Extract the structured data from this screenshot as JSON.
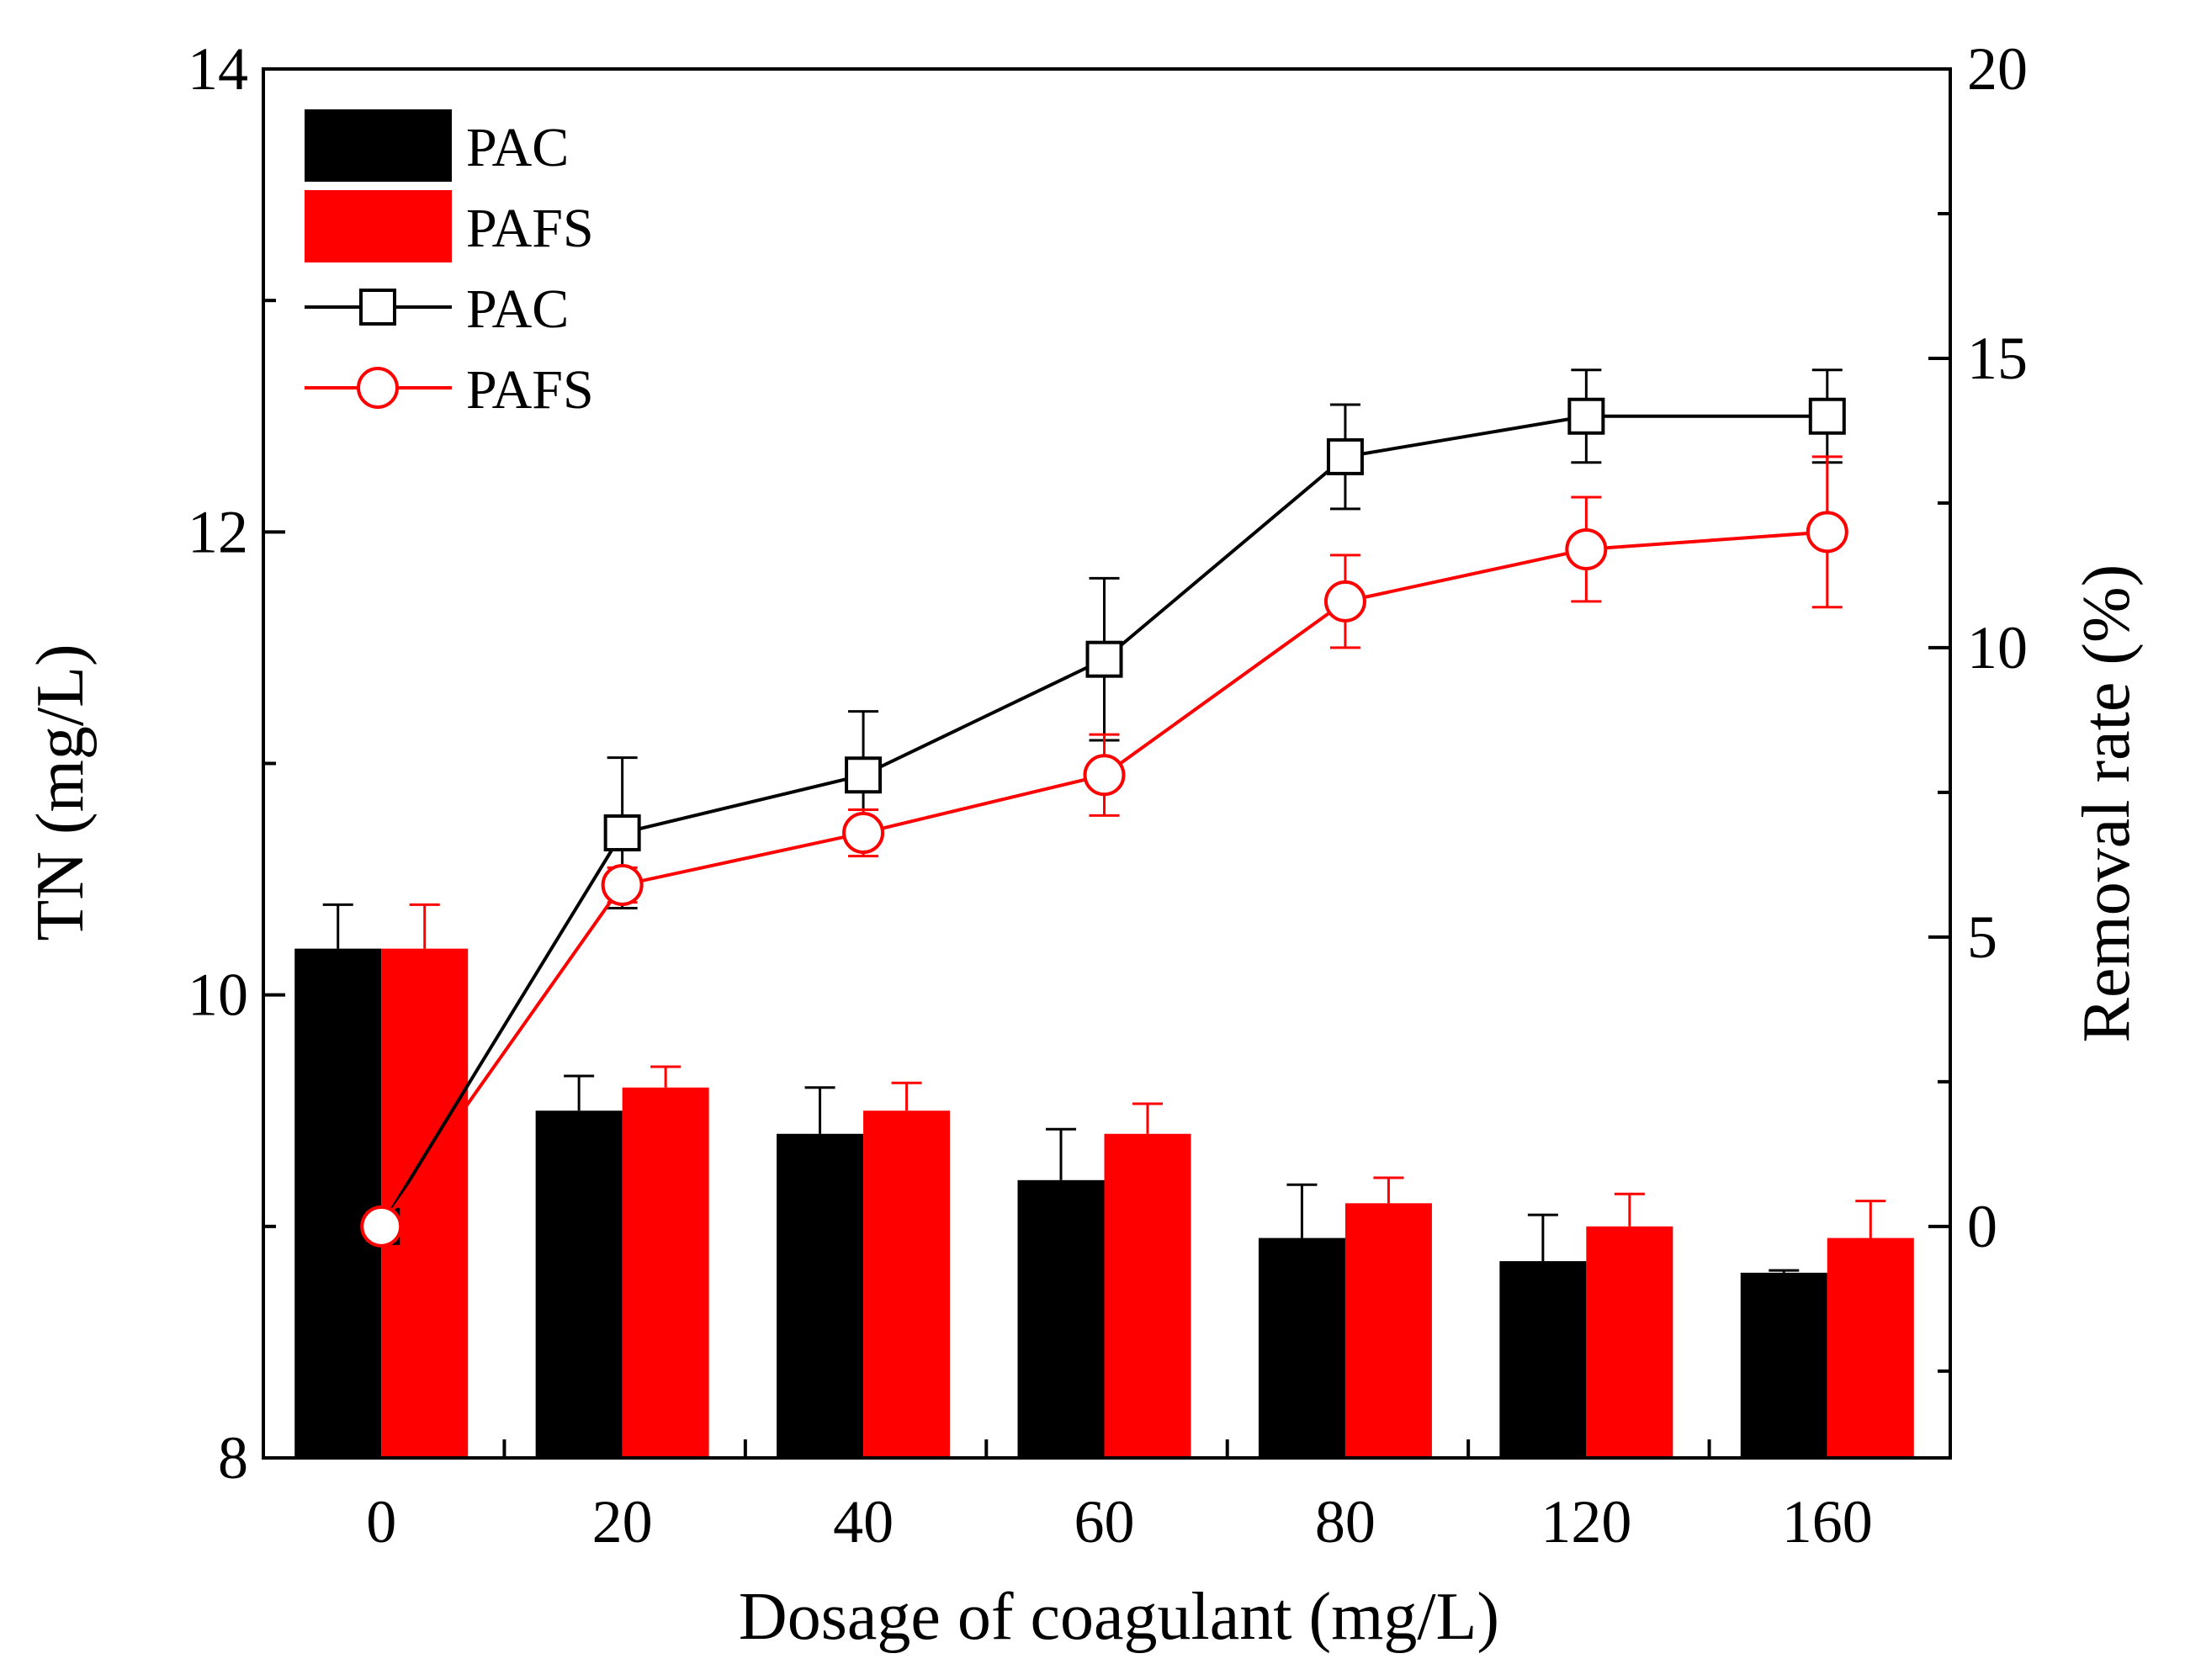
{
  "chart_data": {
    "type": "bar+line",
    "title": "",
    "xlabel": "Dosage of coagulant (mg/L)",
    "ylabel": "TN (mg/L)",
    "y2label": "Removal rate (%)",
    "categories": [
      "0",
      "20",
      "40",
      "60",
      "80",
      "120",
      "160"
    ],
    "ylim": [
      8,
      14
    ],
    "y_ticks": [
      8,
      10,
      12,
      14
    ],
    "y2lim": [
      -4,
      20
    ],
    "y2_ticks": [
      0,
      5,
      10,
      15,
      20
    ],
    "bar_series": [
      {
        "name": "PAC",
        "color": "#000000",
        "values": [
          10.2,
          9.5,
          9.4,
          9.2,
          8.95,
          8.85,
          8.8
        ],
        "errors": [
          0.19,
          0.15,
          0.2,
          0.22,
          0.23,
          0.2,
          0.01
        ]
      },
      {
        "name": "PAFS",
        "color": "#ff0000",
        "values": [
          10.2,
          9.6,
          9.5,
          9.4,
          9.1,
          9.0,
          8.95
        ],
        "errors": [
          0.19,
          0.09,
          0.12,
          0.13,
          0.11,
          0.14,
          0.16
        ]
      }
    ],
    "line_series": [
      {
        "name": "PAC",
        "color": "#000000",
        "marker": "square",
        "values": [
          0,
          6.8,
          7.8,
          9.8,
          13.3,
          14.0,
          14.0
        ],
        "errors": [
          0.2,
          1.3,
          1.1,
          1.4,
          0.9,
          0.8,
          0.8
        ]
      },
      {
        "name": "PAFS",
        "color": "#ff0000",
        "marker": "circle",
        "values": [
          0,
          5.9,
          6.8,
          7.8,
          10.8,
          11.7,
          12.0
        ],
        "errors": [
          0.2,
          0.3,
          0.4,
          0.7,
          0.8,
          0.9,
          1.3
        ]
      }
    ],
    "legend_position": "top-left",
    "grid": false
  }
}
